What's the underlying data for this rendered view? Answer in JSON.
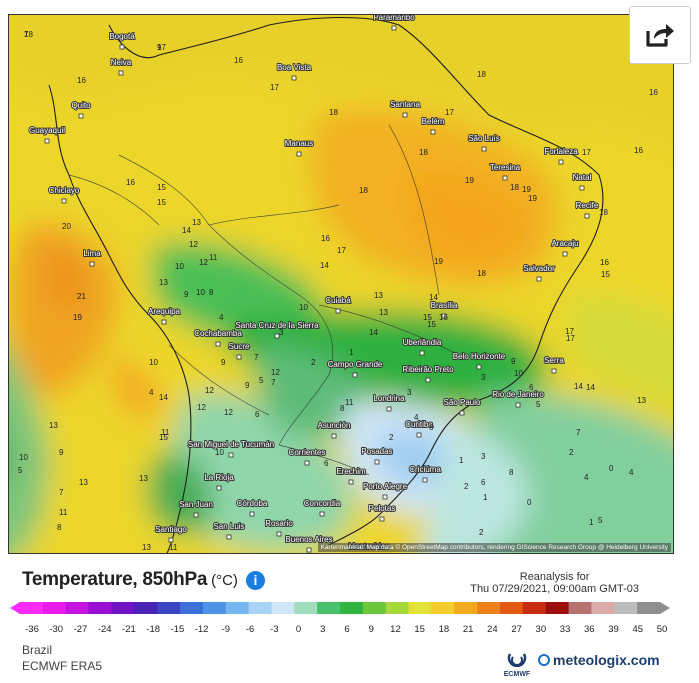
{
  "map": {
    "attribution": "Kartenmaterial: Map data © OpenStreetMap contributors, rendering GIScience Research Group @ Heidelberg University",
    "cities": [
      {
        "name": "Paramaribo"
      },
      {
        "name": "Bogotá"
      },
      {
        "name": "Neiva"
      },
      {
        "name": "Boa Vista"
      },
      {
        "name": "Quito"
      },
      {
        "name": "Guayaquil"
      },
      {
        "name": "Manaus"
      },
      {
        "name": "Santana"
      },
      {
        "name": "Belém"
      },
      {
        "name": "São Luís"
      },
      {
        "name": "Fortaleza"
      },
      {
        "name": "Teresina"
      },
      {
        "name": "Natal"
      },
      {
        "name": "Recife"
      },
      {
        "name": "Chiclayo"
      },
      {
        "name": "Aracaju"
      },
      {
        "name": "Salvador"
      },
      {
        "name": "Lima"
      },
      {
        "name": "Cuiabá"
      },
      {
        "name": "Brasília"
      },
      {
        "name": "Arequipa"
      },
      {
        "name": "Cochabamba"
      },
      {
        "name": "Santa Cruz de la Sierra"
      },
      {
        "name": "Sucre"
      },
      {
        "name": "Uberlândia"
      },
      {
        "name": "Belo Horizonte"
      },
      {
        "name": "Campo Grande"
      },
      {
        "name": "Ribeirão Preto"
      },
      {
        "name": "Serra"
      },
      {
        "name": "Londrina"
      },
      {
        "name": "São Paulo"
      },
      {
        "name": "Rio de Janeiro"
      },
      {
        "name": "Asunción"
      },
      {
        "name": "Curitiba"
      },
      {
        "name": "San Miguel de Tucumán"
      },
      {
        "name": "Corrientes"
      },
      {
        "name": "Posadas"
      },
      {
        "name": "Erechim"
      },
      {
        "name": "Criciúma"
      },
      {
        "name": "Porto Alegre"
      },
      {
        "name": "La Rioja"
      },
      {
        "name": "Pelotas"
      },
      {
        "name": "San Juan"
      },
      {
        "name": "Córdoba"
      },
      {
        "name": "Concordia"
      },
      {
        "name": "San Luis"
      },
      {
        "name": "Rosario"
      },
      {
        "name": "Santiago"
      },
      {
        "name": "Buenos Aires"
      },
      {
        "name": "Montevideo"
      }
    ],
    "isotherm_labels": [
      "18",
      "17",
      "16",
      "18",
      "17",
      "16",
      "16",
      "18",
      "18",
      "17",
      "17",
      "16",
      "19",
      "15",
      "18",
      "19",
      "18",
      "19",
      "20",
      "16",
      "18",
      "15",
      "13",
      "14",
      "12",
      "16",
      "17",
      "19",
      "18",
      "16",
      "15",
      "17",
      "14",
      "13",
      "11",
      "12",
      "13",
      "10",
      "10",
      "15",
      "16",
      "21",
      "9",
      "13",
      "14",
      "11",
      "12",
      "12",
      "10",
      "13",
      "7",
      "8",
      "19",
      "9",
      "12",
      "13",
      "11",
      "15",
      "11",
      "13",
      "5",
      "10",
      "4",
      "10",
      "4",
      "8",
      "9",
      "3",
      "7",
      "5",
      "1",
      "8",
      "6",
      "2",
      "4",
      "6",
      "2",
      "1",
      "3",
      "3",
      "2",
      "1",
      "3",
      "0",
      "2",
      "1",
      "4",
      "4",
      "6",
      "5",
      "7",
      "5",
      "2",
      "0",
      "14",
      "14",
      "13",
      "17",
      "9",
      "10",
      "10",
      "12",
      "6",
      "7",
      "15",
      "13",
      "14",
      "9",
      "14",
      "11",
      "8",
      "6",
      "7",
      "9"
    ]
  },
  "header": {
    "title": "Temperature, 850hPa",
    "unit": "(°C)",
    "reanalysis_label": "Reanalysis for",
    "datetime": "Thu 07/29/2021, 09:00am GMT-03"
  },
  "legend": {
    "ticks": [
      "-36",
      "-30",
      "-27",
      "-24",
      "-21",
      "-18",
      "-15",
      "-12",
      "-9",
      "-6",
      "-3",
      "0",
      "3",
      "6",
      "9",
      "12",
      "15",
      "18",
      "21",
      "24",
      "27",
      "30",
      "33",
      "36",
      "39",
      "45",
      "50"
    ],
    "colors": [
      "#ff2cff",
      "#e61cf0",
      "#c313e0",
      "#9b0fd2",
      "#6f14c4",
      "#4a22b6",
      "#3c46c4",
      "#3a6ed8",
      "#4a93e6",
      "#77b6f0",
      "#a8d3f7",
      "#cfe6f7",
      "#9fdcc0",
      "#46c16a",
      "#2fb540",
      "#6cc83a",
      "#a8d93a",
      "#e2e23a",
      "#f2cc2c",
      "#f4a91f",
      "#ee8218",
      "#e25a14",
      "#c92d12",
      "#9c0d0d",
      "#b87070",
      "#dcaaaa",
      "#bdbdbd",
      "#8f8f8f"
    ]
  },
  "footer": {
    "region": "Brazil",
    "model": "ECMWF ERA5",
    "ecmwf_label": "ECMWF",
    "brand": "meteologix.com"
  }
}
